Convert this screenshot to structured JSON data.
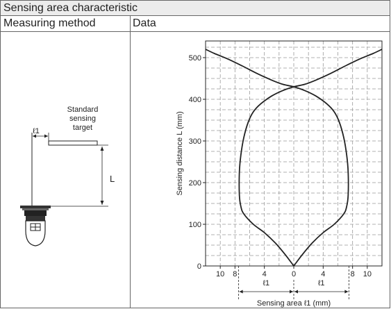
{
  "table": {
    "title": "Sensing area characteristic",
    "col_method": "Measuring method",
    "col_data": "Data"
  },
  "method": {
    "target_label": [
      "Standard",
      "sensing",
      "target"
    ],
    "l1_symbol": "ℓ1",
    "l_symbol": "L"
  },
  "chart_data": {
    "type": "line",
    "ylabel": "Sensing distance L (mm)",
    "xlabel": "Sensing area ℓ1 (mm)",
    "xlim": [
      -12,
      12
    ],
    "ylim": [
      0,
      540
    ],
    "xticks": [
      -10,
      -8,
      -4,
      0,
      4,
      8,
      10
    ],
    "xtick_labels": [
      "10",
      "8",
      "4",
      "0",
      "4",
      "8",
      "10"
    ],
    "yticks": [
      0,
      100,
      200,
      300,
      400,
      500
    ],
    "grid": true,
    "width_marker": {
      "left": -7.5,
      "right": 7.5,
      "left_label": "ℓ1",
      "right_label": "ℓ1"
    },
    "series": [
      {
        "values": [
          [
            -12,
            520
          ],
          [
            -10.8,
            510
          ],
          [
            -9,
            497
          ],
          [
            -7,
            480
          ],
          [
            -5,
            462
          ],
          [
            -3,
            446
          ],
          [
            -1.5,
            436
          ],
          [
            0,
            430
          ],
          [
            1.5,
            421
          ],
          [
            3,
            408
          ],
          [
            4.5,
            389
          ],
          [
            5.5,
            370
          ],
          [
            6.2,
            345
          ],
          [
            6.8,
            308
          ],
          [
            7.2,
            266
          ],
          [
            7.4,
            225
          ],
          [
            7.4,
            170
          ],
          [
            7.2,
            143
          ],
          [
            6.8,
            125
          ],
          [
            5.5,
            100
          ],
          [
            4,
            80
          ],
          [
            2.5,
            55
          ],
          [
            1.2,
            28
          ],
          [
            0,
            0
          ]
        ]
      },
      {
        "values": [
          [
            12,
            520
          ],
          [
            10.8,
            510
          ],
          [
            9,
            497
          ],
          [
            7,
            480
          ],
          [
            5,
            462
          ],
          [
            3,
            446
          ],
          [
            1.5,
            436
          ],
          [
            0,
            430
          ],
          [
            -1.5,
            421
          ],
          [
            -3,
            408
          ],
          [
            -4.5,
            389
          ],
          [
            -5.5,
            370
          ],
          [
            -6.2,
            345
          ],
          [
            -6.8,
            308
          ],
          [
            -7.2,
            266
          ],
          [
            -7.4,
            225
          ],
          [
            -7.4,
            170
          ],
          [
            -7.2,
            143
          ],
          [
            -6.8,
            125
          ],
          [
            -5.5,
            100
          ],
          [
            -4,
            80
          ],
          [
            -2.5,
            55
          ],
          [
            -1.2,
            28
          ],
          [
            0,
            0
          ]
        ]
      }
    ]
  }
}
